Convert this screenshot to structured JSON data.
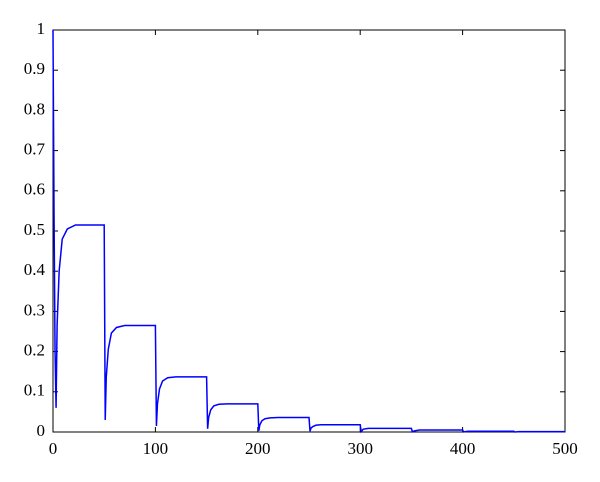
{
  "chart_data": {
    "type": "line",
    "x": [
      0,
      1,
      2,
      3,
      4,
      6,
      9,
      14,
      22,
      50,
      51,
      52,
      54,
      57,
      62,
      70,
      100,
      101,
      102,
      104,
      107,
      112,
      120,
      150,
      151,
      152,
      154,
      157,
      162,
      170,
      200,
      201,
      202,
      204,
      207,
      212,
      220,
      250,
      251,
      252,
      254,
      257,
      262,
      300,
      301,
      303,
      308,
      350,
      351,
      353,
      358,
      400,
      401,
      405,
      450,
      451,
      455,
      500
    ],
    "values": [
      1.0,
      0.55,
      0.2,
      0.06,
      0.265,
      0.4,
      0.48,
      0.505,
      0.515,
      0.515,
      0.03,
      0.136,
      0.206,
      0.246,
      0.26,
      0.265,
      0.265,
      0.015,
      0.07,
      0.107,
      0.127,
      0.135,
      0.137,
      0.137,
      0.008,
      0.036,
      0.055,
      0.065,
      0.069,
      0.07,
      0.07,
      0.003,
      0.018,
      0.028,
      0.033,
      0.035,
      0.036,
      0.036,
      0.002,
      0.01,
      0.014,
      0.017,
      0.018,
      0.018,
      0.001,
      0.007,
      0.009,
      0.009,
      0.0005,
      0.003,
      0.005,
      0.005,
      0.0003,
      0.002,
      0.002,
      0.0001,
      0.001,
      0.001
    ],
    "color": "#0000ff",
    "xlim": [
      0,
      500
    ],
    "xticks": [
      0,
      100,
      200,
      300,
      400,
      500
    ],
    "ylim": [
      0,
      1
    ],
    "yticks": [
      0,
      0.1,
      0.2,
      0.3,
      0.4,
      0.5,
      0.6,
      0.7,
      0.8,
      0.9,
      1
    ],
    "grid": false
  }
}
